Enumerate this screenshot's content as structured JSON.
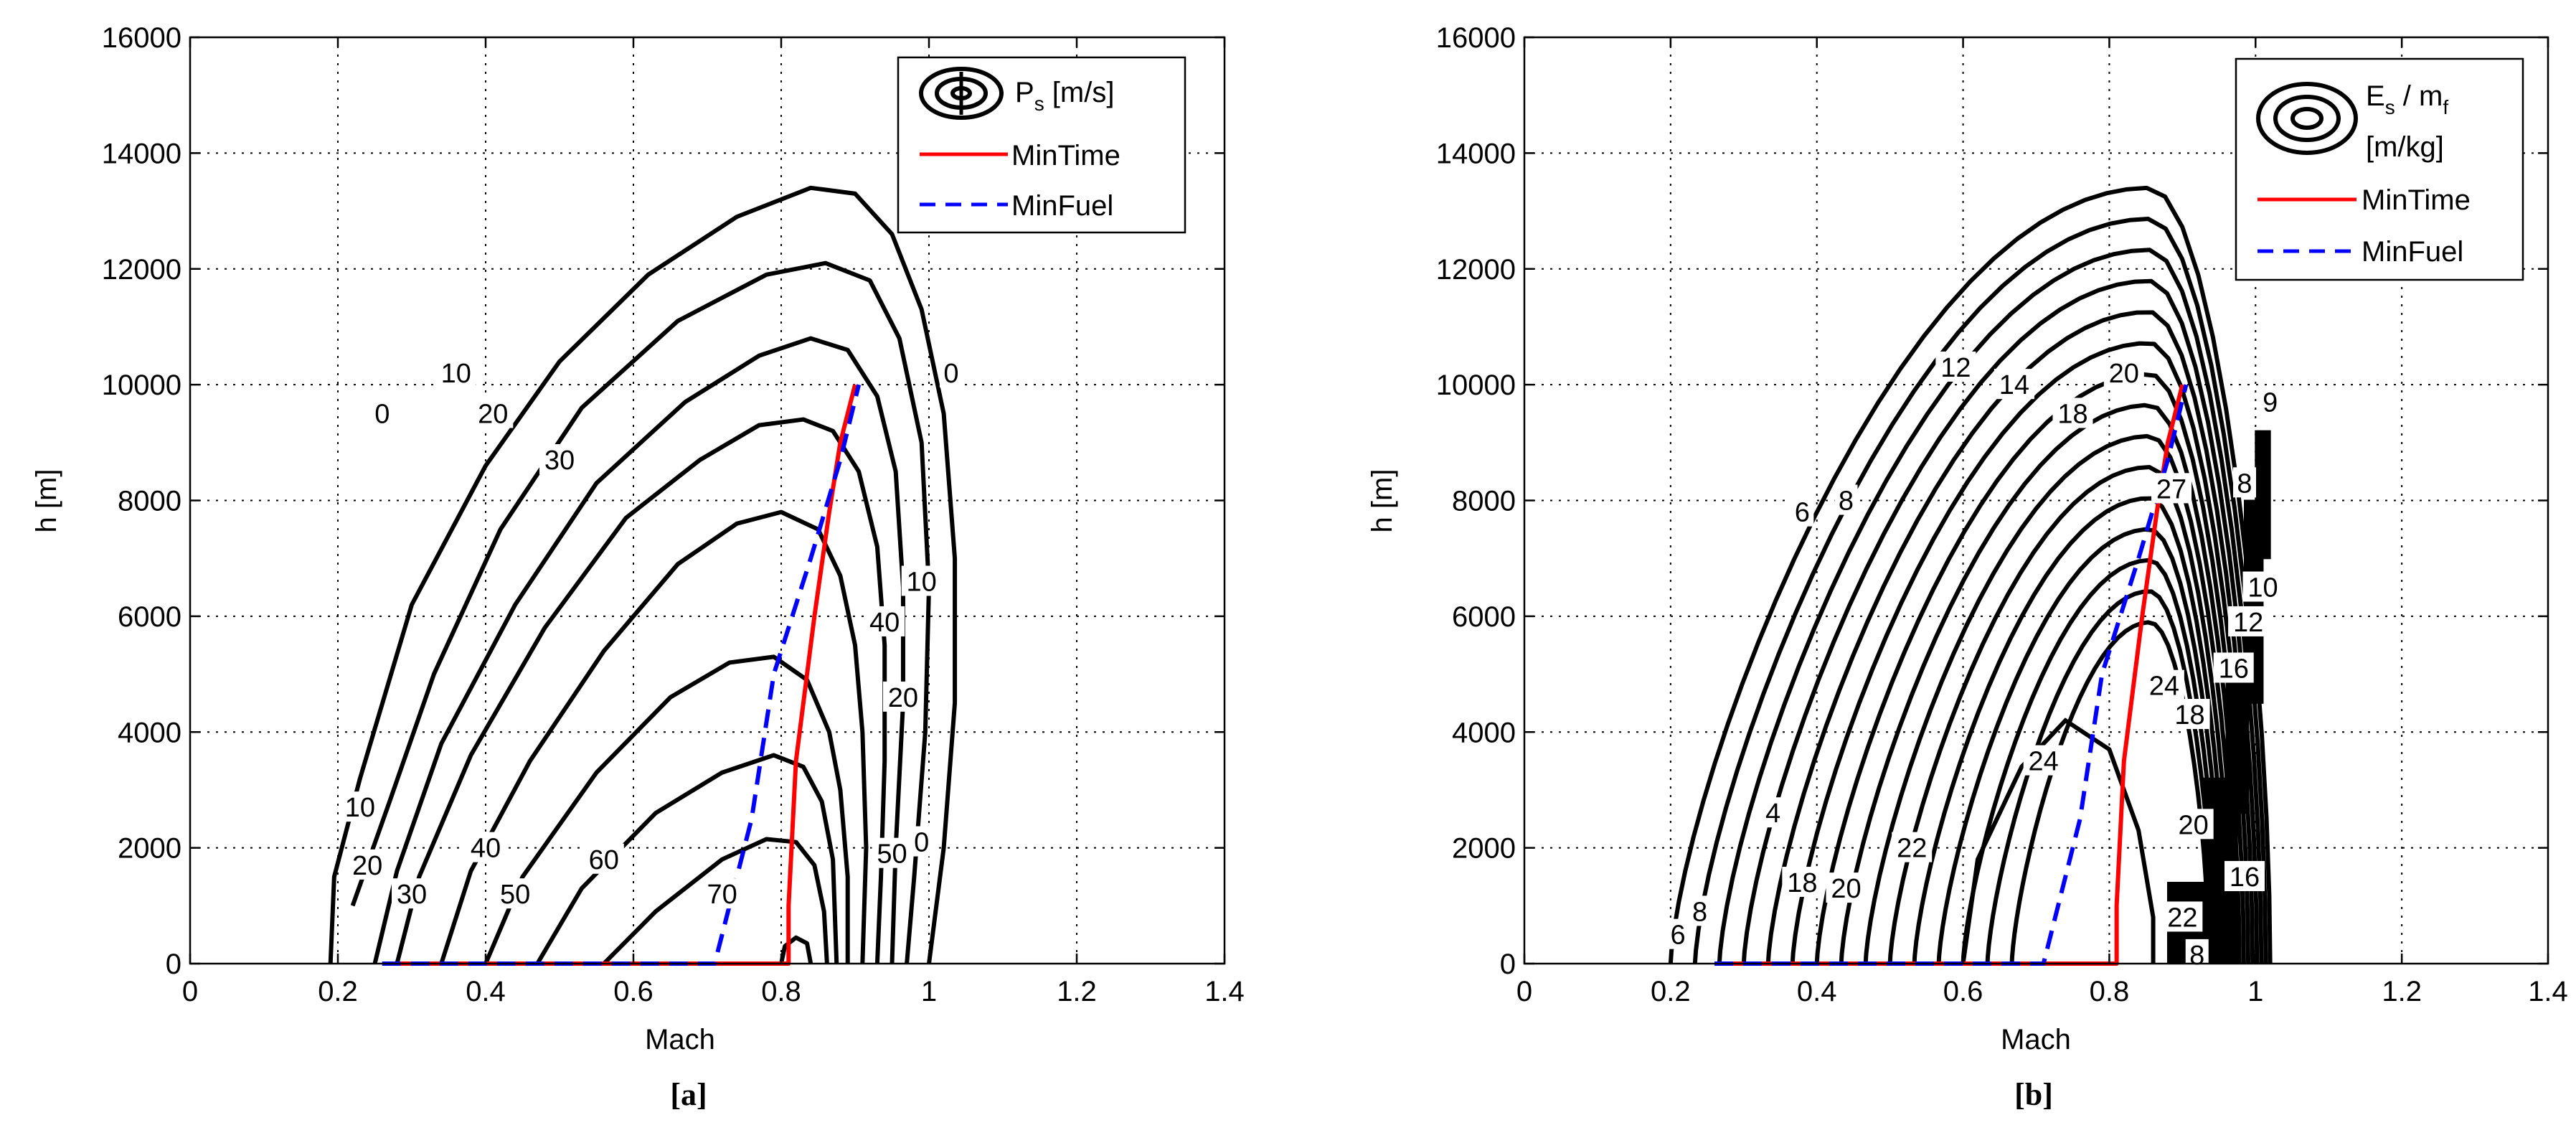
{
  "chart_data": [
    {
      "type": "contour",
      "panel_label": "[a]",
      "xlabel": "Mach",
      "ylabel": "h [m]",
      "xlim": [
        0,
        1.4
      ],
      "ylim": [
        0,
        16000
      ],
      "x_ticks": [
        0,
        0.2,
        0.4,
        0.6,
        0.8,
        1,
        1.2,
        1.4
      ],
      "x_tick_labels": [
        "0",
        "0.2",
        "0.4",
        "0.6",
        "0.8",
        "1",
        "1.2",
        "1.4"
      ],
      "y_ticks": [
        0,
        2000,
        4000,
        6000,
        8000,
        10000,
        12000,
        14000,
        16000
      ],
      "y_tick_labels": [
        "0",
        "2000",
        "4000",
        "6000",
        "8000",
        "10000",
        "12000",
        "14000",
        "16000"
      ],
      "grid": true,
      "legend_position": "top-right",
      "legend": [
        {
          "label_main": "P",
          "label_sub": "s",
          "label_rest": " [m/s]",
          "style": "contour-icon"
        },
        {
          "label": "MinTime",
          "color": "#ff0000",
          "dash": "solid"
        },
        {
          "label": "MinFuel",
          "color": "#0000ff",
          "dash": "dashed"
        }
      ],
      "contours": [
        {
          "level": "0",
          "points": [
            [
              0.19,
              0
            ],
            [
              0.195,
              1500
            ],
            [
              0.23,
              3200
            ],
            [
              0.3,
              6200
            ],
            [
              0.4,
              8600
            ],
            [
              0.5,
              10400
            ],
            [
              0.62,
              11900
            ],
            [
              0.74,
              12900
            ],
            [
              0.84,
              13400
            ],
            [
              0.9,
              13300
            ],
            [
              0.95,
              12600
            ],
            [
              0.99,
              11300
            ],
            [
              1.02,
              9500
            ],
            [
              1.035,
              7000
            ],
            [
              1.035,
              4500
            ],
            [
              1.02,
              2000
            ],
            [
              1.0,
              0
            ]
          ]
        },
        {
          "level": "10",
          "points": [
            [
              0.22,
              1000
            ],
            [
              0.27,
              2800
            ],
            [
              0.33,
              5000
            ],
            [
              0.42,
              7500
            ],
            [
              0.53,
              9600
            ],
            [
              0.66,
              11100
            ],
            [
              0.78,
              11900
            ],
            [
              0.86,
              12100
            ],
            [
              0.92,
              11800
            ],
            [
              0.96,
              10800
            ],
            [
              0.99,
              9000
            ],
            [
              1.0,
              6500
            ],
            [
              0.995,
              4000
            ],
            [
              0.98,
              1500
            ],
            [
              0.97,
              0
            ]
          ]
        },
        {
          "level": "20",
          "points": [
            [
              0.25,
              0
            ],
            [
              0.28,
              1600
            ],
            [
              0.34,
              3800
            ],
            [
              0.44,
              6200
            ],
            [
              0.55,
              8300
            ],
            [
              0.67,
              9700
            ],
            [
              0.77,
              10500
            ],
            [
              0.84,
              10800
            ],
            [
              0.89,
              10600
            ],
            [
              0.93,
              9800
            ],
            [
              0.955,
              8500
            ],
            [
              0.965,
              6500
            ],
            [
              0.965,
              4500
            ],
            [
              0.955,
              2000
            ],
            [
              0.95,
              0
            ]
          ]
        },
        {
          "level": "30",
          "points": [
            [
              0.28,
              0
            ],
            [
              0.31,
              1500
            ],
            [
              0.38,
              3600
            ],
            [
              0.48,
              5800
            ],
            [
              0.59,
              7700
            ],
            [
              0.69,
              8700
            ],
            [
              0.77,
              9300
            ],
            [
              0.83,
              9400
            ],
            [
              0.87,
              9200
            ],
            [
              0.905,
              8500
            ],
            [
              0.93,
              7200
            ],
            [
              0.94,
              5500
            ],
            [
              0.94,
              3500
            ],
            [
              0.935,
              1500
            ],
            [
              0.93,
              0
            ]
          ]
        },
        {
          "level": "40",
          "points": [
            [
              0.34,
              0
            ],
            [
              0.38,
              1600
            ],
            [
              0.46,
              3500
            ],
            [
              0.56,
              5400
            ],
            [
              0.66,
              6900
            ],
            [
              0.74,
              7600
            ],
            [
              0.8,
              7800
            ],
            [
              0.85,
              7500
            ],
            [
              0.88,
              6700
            ],
            [
              0.9,
              5500
            ],
            [
              0.91,
              4000
            ],
            [
              0.915,
              2000
            ],
            [
              0.91,
              0
            ]
          ]
        },
        {
          "level": "50",
          "points": [
            [
              0.4,
              0
            ],
            [
              0.45,
              1500
            ],
            [
              0.55,
              3300
            ],
            [
              0.65,
              4600
            ],
            [
              0.73,
              5200
            ],
            [
              0.79,
              5300
            ],
            [
              0.835,
              4900
            ],
            [
              0.865,
              4000
            ],
            [
              0.88,
              3000
            ],
            [
              0.89,
              1500
            ],
            [
              0.89,
              0
            ]
          ]
        },
        {
          "level": "60",
          "points": [
            [
              0.47,
              0
            ],
            [
              0.53,
              1300
            ],
            [
              0.63,
              2600
            ],
            [
              0.72,
              3300
            ],
            [
              0.79,
              3600
            ],
            [
              0.83,
              3400
            ],
            [
              0.855,
              2800
            ],
            [
              0.87,
              1800
            ],
            [
              0.875,
              0
            ]
          ]
        },
        {
          "level": "70",
          "points": [
            [
              0.56,
              0
            ],
            [
              0.63,
              900
            ],
            [
              0.72,
              1800
            ],
            [
              0.78,
              2150
            ],
            [
              0.82,
              2100
            ],
            [
              0.845,
              1700
            ],
            [
              0.858,
              900
            ],
            [
              0.862,
              0
            ]
          ]
        },
        {
          "level": "",
          "points": [
            [
              0.8,
              0
            ],
            [
              0.805,
              300
            ],
            [
              0.82,
              450
            ],
            [
              0.835,
              350
            ],
            [
              0.84,
              0
            ]
          ]
        }
      ],
      "contour_labels": [
        {
          "text": "0",
          "x": 0.26,
          "y": 9500
        },
        {
          "text": "10",
          "x": 0.36,
          "y": 10200
        },
        {
          "text": "20",
          "x": 0.41,
          "y": 9500
        },
        {
          "text": "30",
          "x": 0.5,
          "y": 8700
        },
        {
          "text": "0",
          "x": 1.03,
          "y": 10200
        },
        {
          "text": "10",
          "x": 0.99,
          "y": 6600
        },
        {
          "text": "40",
          "x": 0.94,
          "y": 5900
        },
        {
          "text": "20",
          "x": 0.965,
          "y": 4600
        },
        {
          "text": "10",
          "x": 0.23,
          "y": 2700
        },
        {
          "text": "20",
          "x": 0.24,
          "y": 1700
        },
        {
          "text": "30",
          "x": 0.3,
          "y": 1200
        },
        {
          "text": "40",
          "x": 0.4,
          "y": 2000
        },
        {
          "text": "50",
          "x": 0.44,
          "y": 1200
        },
        {
          "text": "60",
          "x": 0.56,
          "y": 1800
        },
        {
          "text": "70",
          "x": 0.72,
          "y": 1200
        },
        {
          "text": "50",
          "x": 0.95,
          "y": 1900
        },
        {
          "text": "0",
          "x": 0.99,
          "y": 2100
        }
      ],
      "series": [
        {
          "name": "MinTime",
          "color": "#ff0000",
          "dash": "solid",
          "x": [
            0.26,
            0.81,
            0.81,
            0.82,
            0.845,
            0.865,
            0.88,
            0.9
          ],
          "y": [
            0,
            0,
            1000,
            3500,
            6000,
            7800,
            9000,
            10000
          ]
        },
        {
          "name": "MinFuel",
          "color": "#0000ff",
          "dash": "dashed",
          "x": [
            0.26,
            0.71,
            0.76,
            0.79,
            0.84,
            0.88,
            0.905
          ],
          "y": [
            0,
            0,
            2500,
            5000,
            7000,
            8700,
            10000
          ]
        }
      ]
    },
    {
      "type": "contour",
      "panel_label": "[b]",
      "xlabel": "Mach",
      "ylabel": "h [m]",
      "xlim": [
        0,
        1.4
      ],
      "ylim": [
        0,
        16000
      ],
      "x_ticks": [
        0,
        0.2,
        0.4,
        0.6,
        0.8,
        1,
        1.2,
        1.4
      ],
      "x_tick_labels": [
        "0",
        "0.2",
        "0.4",
        "0.6",
        "0.8",
        "1",
        "1.2",
        "1.4"
      ],
      "y_ticks": [
        0,
        2000,
        4000,
        6000,
        8000,
        10000,
        12000,
        14000,
        16000
      ],
      "y_tick_labels": [
        "0",
        "2000",
        "4000",
        "6000",
        "8000",
        "10000",
        "12000",
        "14000",
        "16000"
      ],
      "grid": true,
      "legend_position": "top-right",
      "legend": [
        {
          "label_main": "E",
          "label_sub": "s",
          "label_rest": " / m",
          "label_sub2": "f",
          "label_line2": "[m/kg]",
          "style": "contour-icon"
        },
        {
          "label": "MinTime",
          "color": "#ff0000",
          "dash": "solid"
        },
        {
          "label": "MinFuel",
          "color": "#0000ff",
          "dash": "dashed"
        }
      ],
      "contour_labels": [
        {
          "text": "6",
          "x": 0.21,
          "y": 500
        },
        {
          "text": "8",
          "x": 0.24,
          "y": 900
        },
        {
          "text": "4",
          "x": 0.34,
          "y": 2600
        },
        {
          "text": "18",
          "x": 0.38,
          "y": 1400
        },
        {
          "text": "20",
          "x": 0.44,
          "y": 1300
        },
        {
          "text": "22",
          "x": 0.53,
          "y": 2000
        },
        {
          "text": "24",
          "x": 0.71,
          "y": 3500
        },
        {
          "text": "6",
          "x": 0.38,
          "y": 7800
        },
        {
          "text": "8",
          "x": 0.44,
          "y": 8000
        },
        {
          "text": "12",
          "x": 0.59,
          "y": 10300
        },
        {
          "text": "14",
          "x": 0.67,
          "y": 10000
        },
        {
          "text": "18",
          "x": 0.75,
          "y": 9500
        },
        {
          "text": "20",
          "x": 0.82,
          "y": 10200
        },
        {
          "text": "27",
          "x": 0.885,
          "y": 8200
        },
        {
          "text": "9",
          "x": 1.02,
          "y": 9700
        },
        {
          "text": "8",
          "x": 0.985,
          "y": 8300
        },
        {
          "text": "10",
          "x": 1.01,
          "y": 6500
        },
        {
          "text": "12",
          "x": 0.99,
          "y": 5900
        },
        {
          "text": "16",
          "x": 0.97,
          "y": 5100
        },
        {
          "text": "24",
          "x": 0.875,
          "y": 4800
        },
        {
          "text": "18",
          "x": 0.91,
          "y": 4300
        },
        {
          "text": "20",
          "x": 0.915,
          "y": 2400
        },
        {
          "text": "22",
          "x": 0.9,
          "y": 800
        },
        {
          "text": "16",
          "x": 0.985,
          "y": 1500
        },
        {
          "text": "8",
          "x": 0.92,
          "y": 150
        }
      ],
      "series": [
        {
          "name": "MinTime",
          "color": "#ff0000",
          "dash": "solid",
          "x": [
            0.26,
            0.81,
            0.81,
            0.82,
            0.845,
            0.865,
            0.88,
            0.9
          ],
          "y": [
            0,
            0,
            1000,
            3500,
            6000,
            7800,
            9000,
            10000
          ]
        },
        {
          "name": "MinFuel",
          "color": "#0000ff",
          "dash": "dashed",
          "x": [
            0.26,
            0.71,
            0.76,
            0.79,
            0.84,
            0.88,
            0.905
          ],
          "y": [
            0,
            0,
            2500,
            5000,
            7000,
            8700,
            10000
          ]
        }
      ]
    }
  ]
}
